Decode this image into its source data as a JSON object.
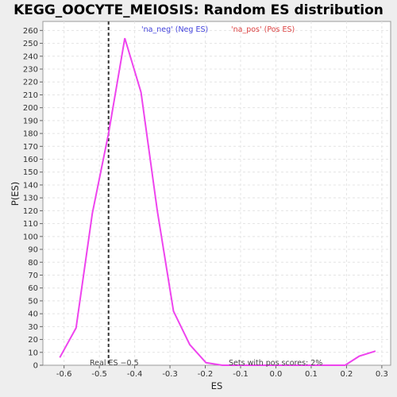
{
  "chart_data": {
    "type": "line",
    "title": "KEGG_OOCYTE_MEIOSIS: Random ES distribution",
    "xlabel": "ES",
    "ylabel": "P(ES)",
    "xlim": [
      -0.66,
      0.325
    ],
    "ylim": [
      0,
      267
    ],
    "xticks": [
      "-0.6",
      "-0.5",
      "-0.4",
      "-0.3",
      "-0.2",
      "-0.1",
      "0.0",
      "0.1",
      "0.2",
      "0.3"
    ],
    "xtick_values": [
      -0.6,
      -0.5,
      -0.4,
      -0.3,
      -0.2,
      -0.1,
      0.0,
      0.1,
      0.2,
      0.3
    ],
    "ytick_step": 10,
    "ytick_max": 260,
    "grid": true,
    "legend": [
      {
        "label": "'na_neg' (Neg ES)",
        "color": "#4444dd"
      },
      {
        "label": "'na_pos' (Pos ES)",
        "color": "#dd4444"
      }
    ],
    "series": [
      {
        "color": "#ee44ee",
        "x": [
          -0.612,
          -0.566,
          -0.52,
          -0.474,
          -0.428,
          -0.382,
          -0.336,
          -0.29,
          -0.244,
          -0.198,
          -0.152,
          -0.106,
          -0.06,
          -0.014,
          0.032,
          0.078,
          0.124,
          0.17,
          0.196,
          0.236,
          0.282
        ],
        "y": [
          6,
          29,
          118,
          180,
          254,
          212,
          120,
          42,
          16,
          2,
          0,
          0,
          0,
          0,
          0,
          0,
          0,
          0,
          0,
          7,
          11
        ]
      }
    ],
    "real_es": {
      "x": -0.474,
      "label": "Real ES −0.5"
    },
    "annotation": "Sets with pos scores: 2%"
  }
}
